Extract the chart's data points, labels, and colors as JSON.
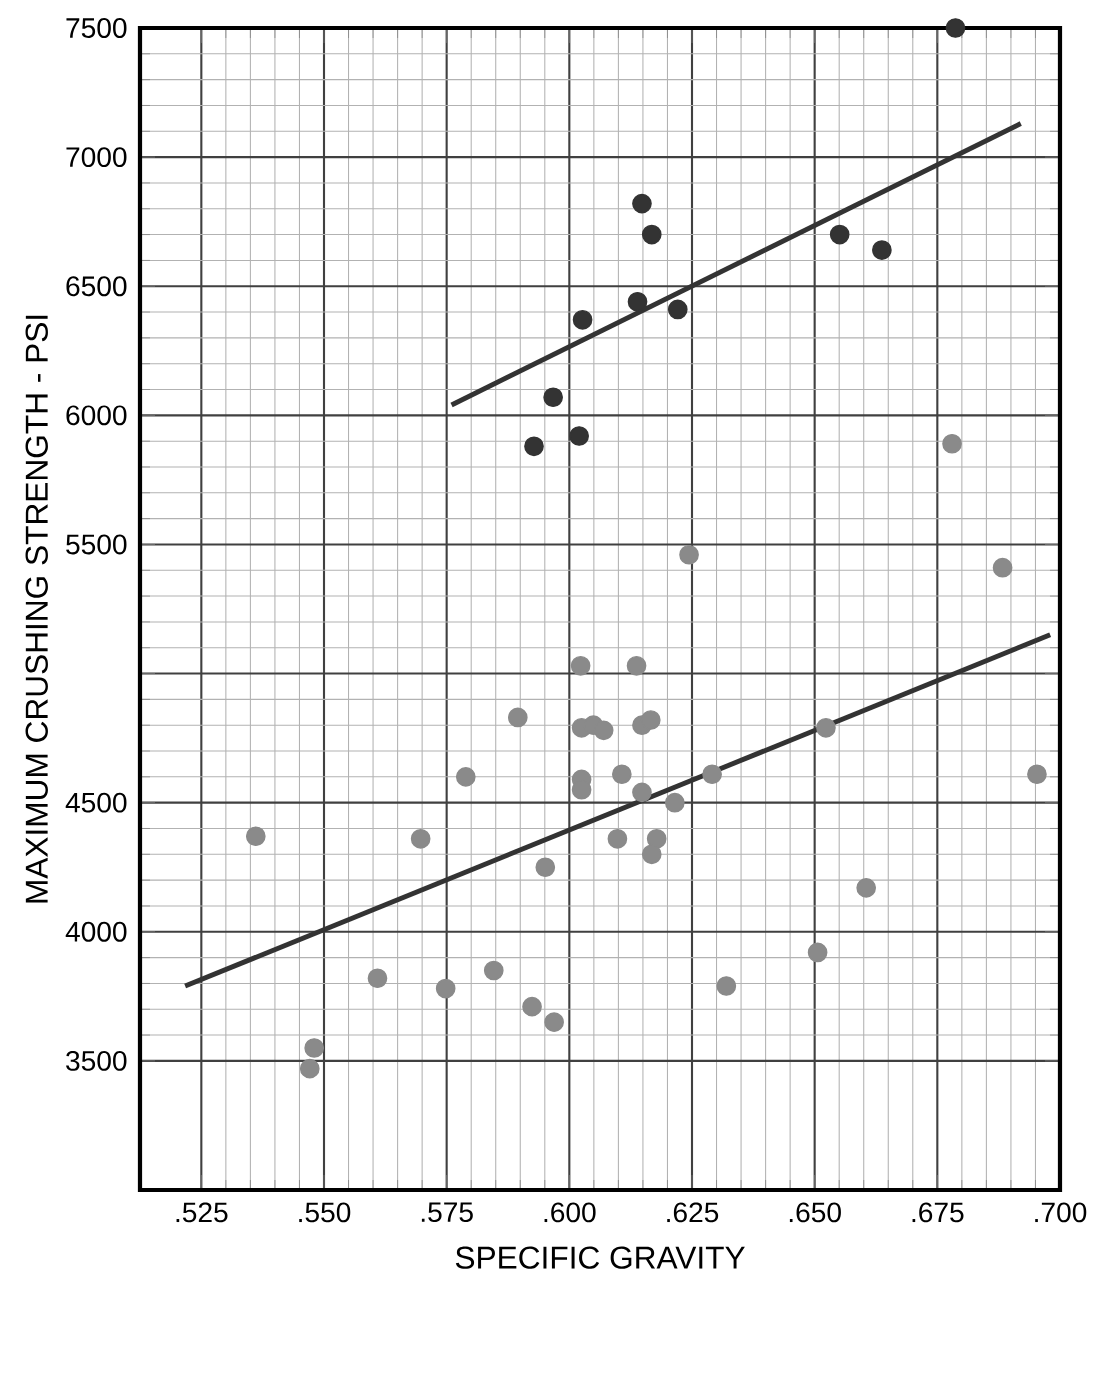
{
  "chart_data": {
    "type": "scatter",
    "xlabel": "SPECIFIC GRAVITY",
    "ylabel": "MAXIMUM CRUSHING STRENGTH - PSI",
    "xlim": [
      0.5125,
      0.7
    ],
    "ylim": [
      3000,
      7500
    ],
    "xticks": [
      {
        "value": 0.525,
        "label": ".525"
      },
      {
        "value": 0.55,
        "label": ".550"
      },
      {
        "value": 0.575,
        "label": ".575"
      },
      {
        "value": 0.6,
        "label": ".600"
      },
      {
        "value": 0.625,
        "label": ".625"
      },
      {
        "value": 0.65,
        "label": ".650"
      },
      {
        "value": 0.675,
        "label": ".675"
      },
      {
        "value": 0.7,
        "label": ".700"
      }
    ],
    "yticks": [
      3500,
      4000,
      4500,
      {
        "value": 5000,
        "label": null
      },
      5500,
      6000,
      6500,
      7000,
      7500
    ],
    "grid": true,
    "series": [
      {
        "marker": "circle",
        "color": "#333333",
        "x": [
          0.6148,
          0.6168,
          0.6551,
          0.6637,
          0.6139,
          0.6221,
          0.6027,
          0.5967,
          0.6787,
          0.5928,
          0.602
        ],
        "values": [
          6820,
          6700,
          6700,
          6640,
          6440,
          6410,
          6370,
          6070,
          7500,
          5880,
          5920
        ]
      },
      {
        "marker": "circle",
        "color": "#8a8a8a",
        "x": [
          0.678,
          0.6244,
          0.6883,
          0.6023,
          0.6137,
          0.5895,
          0.6025,
          0.6049,
          0.607,
          0.6148,
          0.6166,
          0.5789,
          0.6025,
          0.6025,
          0.6107,
          0.6148,
          0.6215,
          0.6291,
          0.6523,
          0.6953,
          0.5361,
          0.5697,
          0.6098,
          0.6178,
          0.6168,
          0.5951,
          0.6605,
          0.6506,
          0.5609,
          0.5748,
          0.5846,
          0.5924,
          0.5969,
          0.632,
          0.548,
          0.5471
        ],
        "values": [
          5890,
          5460,
          5410,
          5030,
          5030,
          4830,
          4790,
          4800,
          4780,
          4800,
          4820,
          4600,
          4590,
          4550,
          4610,
          4540,
          4500,
          4610,
          4790,
          4610,
          4370,
          4360,
          4360,
          4360,
          4300,
          4250,
          4170,
          3920,
          3820,
          3780,
          3850,
          3710,
          3650,
          3790,
          3550,
          3470
        ]
      },
      {
        "type": "line",
        "color": "#333333",
        "x": [
          0.576,
          0.692
        ],
        "values": [
          6040,
          7130
        ]
      },
      {
        "type": "line",
        "color": "#333333",
        "x": [
          0.5217,
          0.698
        ],
        "values": [
          3790,
          5150
        ]
      }
    ]
  }
}
